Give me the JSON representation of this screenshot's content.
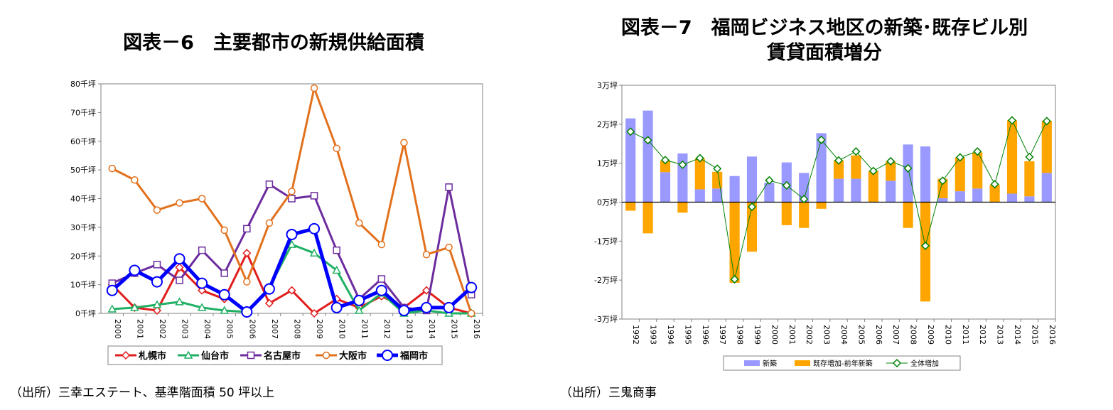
{
  "fig6": {
    "title": "図表－6　主要都市の新規供給面積",
    "source": "（出所）三幸エステート、基準階面積 50 坪以上",
    "chart_data": {
      "type": "line",
      "title": "図表－6　主要都市の新規供給面積",
      "x": [
        "2000",
        "2001",
        "2002",
        "2003",
        "2004",
        "2005",
        "2006",
        "2007",
        "2008",
        "2009",
        "2010",
        "2011",
        "2012",
        "2013",
        "2014",
        "2015",
        "2016"
      ],
      "ylim": [
        0,
        80
      ],
      "yticks": [
        0,
        10,
        20,
        30,
        40,
        50,
        60,
        70,
        80
      ],
      "ytick_suffix": "千坪",
      "legend_position": "bottom",
      "series": [
        {
          "name": "札幌市",
          "color": "#e21d1d",
          "marker": "diamond",
          "values": [
            10,
            2,
            1,
            16,
            8,
            5,
            21,
            3.5,
            8,
            0,
            5,
            2,
            6,
            2,
            8,
            2,
            0
          ]
        },
        {
          "name": "仙台市",
          "color": "#1fb064",
          "marker": "triangle",
          "values": [
            1.5,
            2,
            3,
            4,
            2,
            1,
            0.5,
            9,
            24,
            21,
            15,
            1,
            7,
            0,
            1,
            0,
            0
          ]
        },
        {
          "name": "名古屋市",
          "color": "#6c2c9e",
          "marker": "square",
          "values": [
            10.5,
            14,
            17,
            11.5,
            22,
            14,
            29.5,
            45,
            40,
            41,
            22,
            5,
            12,
            2,
            1,
            44,
            6.5
          ]
        },
        {
          "name": "大阪市",
          "color": "#e2711d",
          "marker": "circle",
          "values": [
            50.5,
            46.5,
            36,
            38.5,
            40,
            29,
            11,
            31.5,
            42.5,
            78.5,
            57.5,
            31.5,
            24,
            59.5,
            20.5,
            23,
            0
          ]
        },
        {
          "name": "福岡市",
          "color": "#0000ff",
          "marker": "bigcircle",
          "values": [
            8,
            15,
            11,
            19,
            10.5,
            6.5,
            0.5,
            8.5,
            27.5,
            29.5,
            2,
            4.5,
            8,
            1,
            2,
            2,
            9
          ]
        }
      ]
    }
  },
  "fig7": {
    "title_line1": "図表－7　福岡ビジネス地区の新築･既存ビル別",
    "title_line2": "賃貸面積増分",
    "source": "（出所）三鬼商事",
    "chart_data": {
      "type": "bar",
      "title": "図表－7　福岡ビジネス地区の新築･既存ビル別 賃貸面積増分",
      "categories": [
        "1992",
        "1993",
        "1994",
        "1995",
        "1996",
        "1997",
        "1998",
        "1999",
        "2000",
        "2001",
        "2002",
        "2003",
        "2004",
        "2005",
        "2006",
        "2007",
        "2008",
        "2009",
        "2010",
        "2011",
        "2012",
        "2013",
        "2014",
        "2015",
        "2016"
      ],
      "ylim": [
        -3,
        3
      ],
      "ytick_values": [
        -3,
        -2,
        -1,
        0,
        1,
        2,
        3
      ],
      "ytick_labels": [
        "-3万坪",
        "-2万坪",
        "-1万坪",
        "0万坪",
        "1万坪",
        "2万坪",
        "3万坪"
      ],
      "legend_position": "bottom",
      "series": [
        {
          "name": "新築",
          "kind": "bar",
          "color": "#9999ff",
          "values": [
            2.15,
            2.35,
            0.77,
            1.25,
            0.33,
            0.35,
            0.67,
            1.17,
            0.5,
            1.02,
            0.75,
            1.77,
            0.6,
            0.6,
            0,
            0.55,
            1.48,
            1.43,
            0.1,
            0.28,
            0.35,
            0,
            0.22,
            0.15,
            0.75
          ]
        },
        {
          "name": "既存増加-前年新築",
          "kind": "bar",
          "color": "#ffa500",
          "values": [
            -0.22,
            -0.8,
            0.3,
            -0.27,
            0.79,
            0.43,
            -2.07,
            -1.27,
            0,
            -0.59,
            -0.66,
            -0.17,
            0.47,
            0.6,
            0.8,
            0.5,
            -0.66,
            -2.55,
            0.5,
            0.87,
            0.93,
            0.45,
            1.88,
            0.9,
            1.34
          ]
        },
        {
          "name": "全体増加",
          "kind": "line",
          "color": "#008000",
          "values": [
            1.81,
            1.59,
            1.08,
            0.96,
            1.13,
            0.86,
            -1.98,
            -0.12,
            0.56,
            0.43,
            0.08,
            1.6,
            1.07,
            1.3,
            0.8,
            1.05,
            0.87,
            -1.12,
            0.55,
            1.15,
            1.3,
            0.46,
            2.1,
            1.16,
            2.08
          ]
        }
      ]
    }
  }
}
